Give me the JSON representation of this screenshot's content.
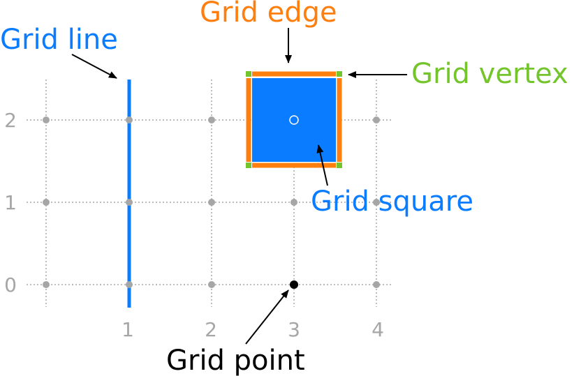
{
  "labels": {
    "grid_line": "Grid line",
    "grid_edge": "Grid edge",
    "grid_vertex": "Grid vertex",
    "grid_square": "Grid square",
    "grid_point": "Grid point"
  },
  "axis": {
    "x_ticks": [
      "1",
      "2",
      "3",
      "4"
    ],
    "y_ticks": [
      "2",
      "1",
      "0"
    ]
  },
  "colors": {
    "grid_line": "#0a7cff",
    "grid_edge": "#ff7f0e",
    "grid_vertex": "#74c52b",
    "grid_square": "#0a7cff",
    "grid_point": "#000000",
    "neutral_grid": "#a6a6a6"
  }
}
